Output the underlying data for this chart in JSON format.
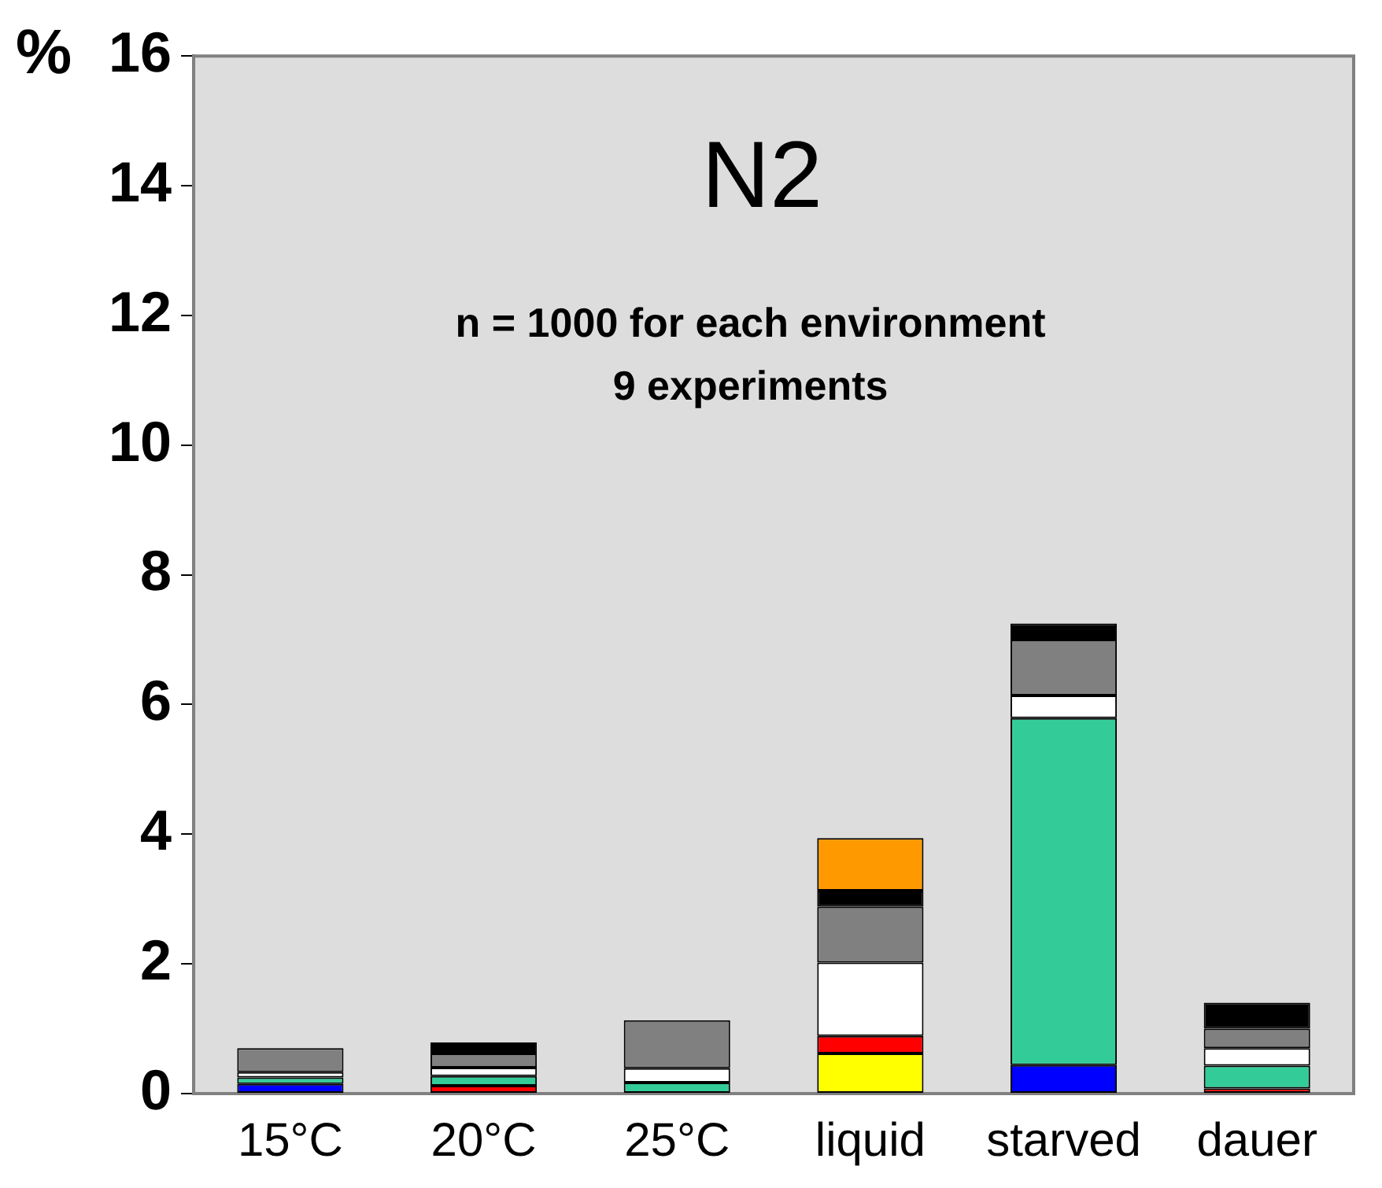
{
  "chart_data": {
    "type": "bar",
    "stacked": true,
    "title": "N2",
    "ylabel": "%",
    "annotations": [
      "n = 1000 for each environment",
      "9 experiments"
    ],
    "categories": [
      "15°C",
      "20°C",
      "25°C",
      "liquid",
      "starved",
      "dauer"
    ],
    "ylim": [
      0,
      16
    ],
    "yticks": [
      0,
      2,
      4,
      6,
      8,
      10,
      12,
      14,
      16
    ],
    "grid": false,
    "legend": false,
    "series": [
      {
        "color": "#ffff00",
        "values": [
          null,
          null,
          null,
          0.62,
          null,
          null
        ]
      },
      {
        "color": "#0000ff",
        "values": [
          0.15,
          null,
          null,
          null,
          0.44,
          null
        ]
      },
      {
        "color": "#ff0000",
        "values": [
          null,
          0.12,
          null,
          0.27,
          null,
          0.08
        ]
      },
      {
        "color": "#33cc99",
        "values": [
          0.1,
          0.15,
          0.17,
          null,
          5.35,
          0.35
        ]
      },
      {
        "color": "#ffffff",
        "values": [
          0.08,
          0.13,
          0.22,
          1.13,
          0.35,
          0.27
        ]
      },
      {
        "color": "#808080",
        "values": [
          0.37,
          0.22,
          0.74,
          0.86,
          0.86,
          0.3
        ]
      },
      {
        "color": "#000000",
        "values": [
          null,
          0.17,
          null,
          0.25,
          0.25,
          0.4
        ]
      },
      {
        "color": "#ff9900",
        "values": [
          null,
          null,
          null,
          0.81,
          null,
          null
        ]
      }
    ]
  }
}
